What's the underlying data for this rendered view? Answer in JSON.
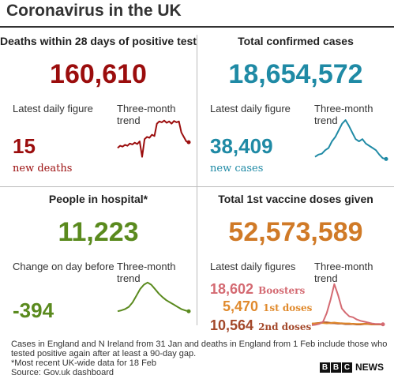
{
  "title": "Coronavirus in the UK",
  "colors": {
    "deaths": "#9b0d0d",
    "cases": "#1f8aa5",
    "hospital": "#5a8a1e",
    "vaccine": "#d07a27",
    "boosters": "#d46a72",
    "first_doses": "#e08a2d",
    "second_doses": "#a3482a"
  },
  "deaths": {
    "title": "Deaths within 28 days of positive test",
    "total": "160,610",
    "daily_label": "Latest daily figure",
    "trend_label": "Three-month trend",
    "daily_value": "15",
    "daily_sub": "new deaths"
  },
  "cases": {
    "title": "Total confirmed cases",
    "total": "18,654,572",
    "daily_label": "Latest daily figure",
    "trend_label": "Three-month trend",
    "daily_value": "38,409",
    "daily_sub": "new cases"
  },
  "hospital": {
    "title": "People in hospital*",
    "total": "11,223",
    "daily_label": "Change on day before",
    "trend_label": "Three-month trend",
    "daily_value": "-394"
  },
  "vaccine": {
    "title": "Total 1st vaccine doses given",
    "total": "52,573,589",
    "daily_label": "Latest daily figures",
    "trend_label": "Three-month trend",
    "boosters_value": "18,602",
    "boosters_label": "Boosters",
    "first_value": "5,470",
    "first_label": "1st doses",
    "second_value": "10,564",
    "second_label": "2nd doses"
  },
  "footer": {
    "line1": "Cases in England and N Ireland from 31 Jan and deaths in England from 1 Feb include those who",
    "line2": "tested positive again after at least a 90-day gap.",
    "line3": "*Most recent UK-wide data for 18 Feb",
    "line4": "Source: Gov.uk dashboard"
  },
  "brand": {
    "b1": "B",
    "b2": "B",
    "b3": "C",
    "news": "NEWS"
  },
  "trends": {
    "deaths": [
      0.35,
      0.4,
      0.38,
      0.42,
      0.4,
      0.45,
      0.43,
      0.47,
      0.44,
      0.5,
      0.15,
      0.55,
      0.6,
      0.58,
      0.65,
      0.62,
      0.9,
      0.95,
      0.93,
      0.97,
      0.92,
      0.95,
      0.9,
      0.96,
      0.93,
      0.95,
      0.7,
      0.6,
      0.5,
      0.48
    ],
    "cases": [
      0.15,
      0.2,
      0.22,
      0.3,
      0.35,
      0.5,
      0.6,
      0.75,
      0.9,
      0.98,
      0.85,
      0.7,
      0.55,
      0.5,
      0.55,
      0.45,
      0.4,
      0.35,
      0.3,
      0.2,
      0.12,
      0.1
    ],
    "hospital": [
      0.3,
      0.32,
      0.35,
      0.4,
      0.5,
      0.65,
      0.8,
      0.9,
      0.95,
      0.9,
      0.8,
      0.7,
      0.62,
      0.55,
      0.5,
      0.45,
      0.4,
      0.35,
      0.32,
      0.3
    ],
    "boosters": [
      0.02,
      0.03,
      0.05,
      0.1,
      0.3,
      0.6,
      0.95,
      0.7,
      0.4,
      0.3,
      0.22,
      0.2,
      0.15,
      0.12,
      0.1,
      0.08,
      0.06,
      0.05,
      0.05,
      0.04
    ],
    "first": [
      0.06,
      0.06,
      0.07,
      0.07,
      0.06,
      0.07,
      0.08,
      0.07,
      0.06,
      0.06,
      0.06,
      0.05,
      0.05,
      0.05,
      0.05,
      0.05,
      0.04,
      0.04,
      0.04,
      0.04
    ],
    "second": [
      0.05,
      0.06,
      0.07,
      0.08,
      0.08,
      0.07,
      0.07,
      0.06,
      0.06,
      0.05,
      0.05,
      0.05,
      0.04,
      0.04,
      0.05,
      0.05,
      0.04,
      0.04,
      0.04,
      0.04
    ]
  }
}
